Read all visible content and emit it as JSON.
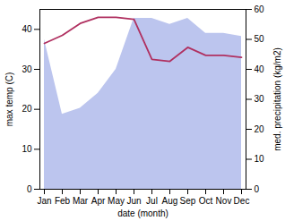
{
  "chart_data": {
    "type": "line",
    "categories": [
      "Jan",
      "Feb",
      "Mar",
      "Apr",
      "May",
      "Jun",
      "Jul",
      "Aug",
      "Sep",
      "Oct",
      "Nov",
      "Dec"
    ],
    "xlabel": "date (month)",
    "ylabel": "max temp (C)",
    "y2label": "med. precipitation (kg/m2)",
    "series": [
      {
        "type": "area",
        "axis": "y2",
        "color": "#bcc5ee",
        "values": [
          50,
          25,
          27,
          32,
          40,
          57,
          57,
          55,
          57,
          52,
          52,
          51
        ]
      },
      {
        "type": "line",
        "color": "#b03060",
        "values": [
          36.5,
          38.5,
          41.5,
          43.0,
          43.0,
          42.5,
          32.5,
          32.0,
          35.5,
          33.5,
          33.5,
          33.0
        ]
      }
    ],
    "ylim": [
      0,
      45
    ],
    "yticks": [
      0,
      10,
      20,
      30,
      40
    ],
    "y2lim": [
      0,
      60
    ],
    "y2ticks": [
      0,
      10,
      20,
      30,
      40,
      50,
      60
    ]
  }
}
